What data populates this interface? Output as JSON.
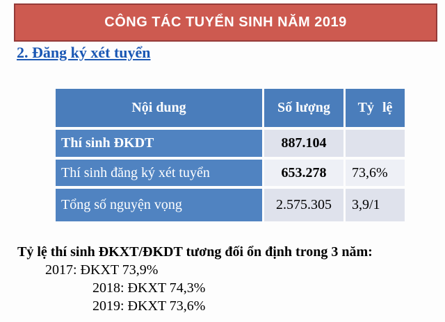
{
  "slide": {
    "banner": {
      "title": "CÔNG TÁC TUYỂN SINH NĂM 2019"
    },
    "section_heading": "2. Đăng ký xét tuyển",
    "table": {
      "headers": [
        "Nội dung",
        "Số lượng",
        "Tỷ lệ"
      ],
      "rows": [
        {
          "label": "Thí sinh ĐKDT",
          "quantity": "887.104",
          "ratio": ""
        },
        {
          "label": "Thí sinh đăng ký xét tuyển",
          "quantity": "653.278",
          "ratio": "73,6%"
        },
        {
          "label": "Tổng số nguyện vọng",
          "quantity": "2.575.305",
          "ratio": "3,9/1"
        }
      ]
    },
    "summary": {
      "heading": "Tỷ lệ thí sinh ĐKXT/ĐKDT tương đối ổn định trong 3 năm:",
      "lines": [
        "2017: ĐKXT 73,9%",
        "2018: ĐKXT 74,3%",
        "2019: ĐKXT 73,6%"
      ]
    },
    "colors": {
      "banner_fill": "#cd5a50",
      "banner_border": "#943a38",
      "header_blue": "#4a7dbb",
      "row_blue": "#5083c1",
      "cell_light": "#dfe2ec",
      "cell_lighter": "#eef0f6",
      "heading_blue": "#1a57b4"
    }
  }
}
